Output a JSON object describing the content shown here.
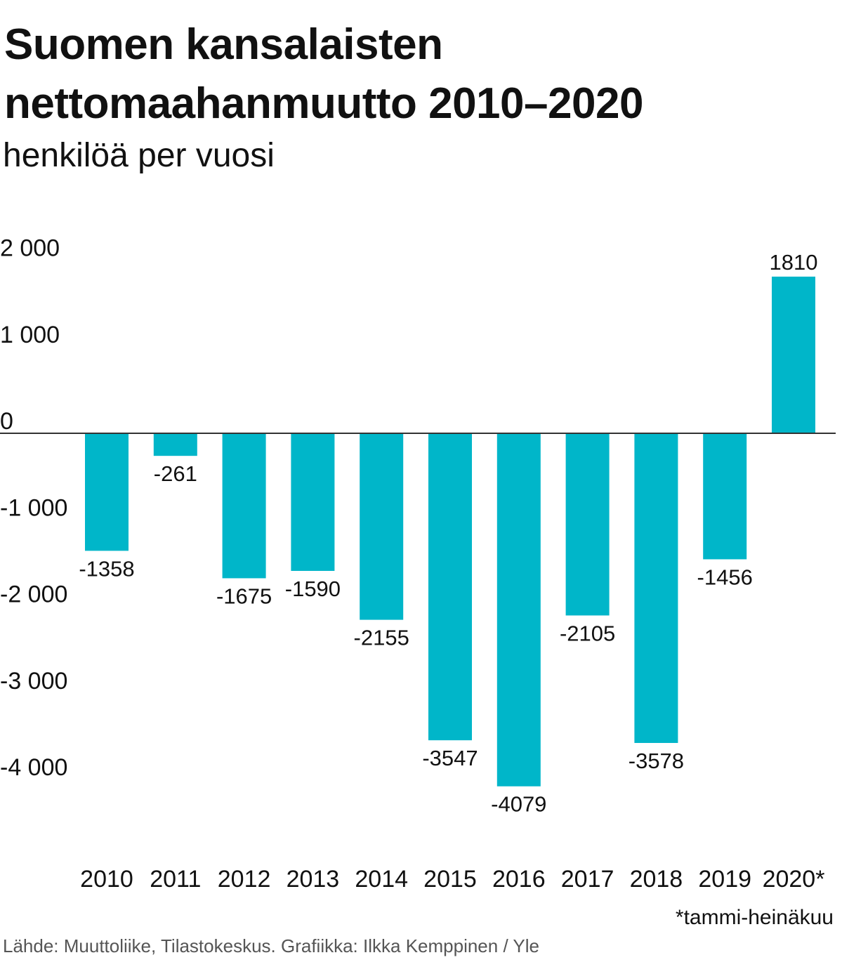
{
  "title": "Suomen kansalaisten nettomaahanmuutto 2010–2020",
  "subtitle": "henkilöä per vuosi",
  "note": "*tammi-heinäkuu",
  "source": "Lähde: Muuttoliike, Tilastokeskus. Grafiikka: Ilkka Kemppinen / Yle",
  "colors": {
    "bar": "#00b6c9",
    "axis": "#333333"
  },
  "chart_data": {
    "type": "bar",
    "title": "Suomen kansalaisten nettomaahanmuutto 2010–2020",
    "subtitle": "henkilöä per vuosi",
    "xlabel": "",
    "ylabel": "",
    "categories": [
      "2010",
      "2011",
      "2012",
      "2013",
      "2014",
      "2015",
      "2016",
      "2017",
      "2018",
      "2019",
      "2020*"
    ],
    "values": [
      -1358,
      -261,
      -1675,
      -1590,
      -2155,
      -3547,
      -4079,
      -2105,
      -3578,
      -1456,
      1810
    ],
    "ylim": [
      -4000,
      2000
    ],
    "yticks": [
      2000,
      1000,
      0,
      -1000,
      -2000,
      -3000,
      -4000
    ],
    "ytick_labels": [
      "2 000",
      "1 000",
      "0",
      "-1 000",
      "-2 000",
      "-3 000",
      "-4 000"
    ],
    "grid": false,
    "legend": "none"
  }
}
